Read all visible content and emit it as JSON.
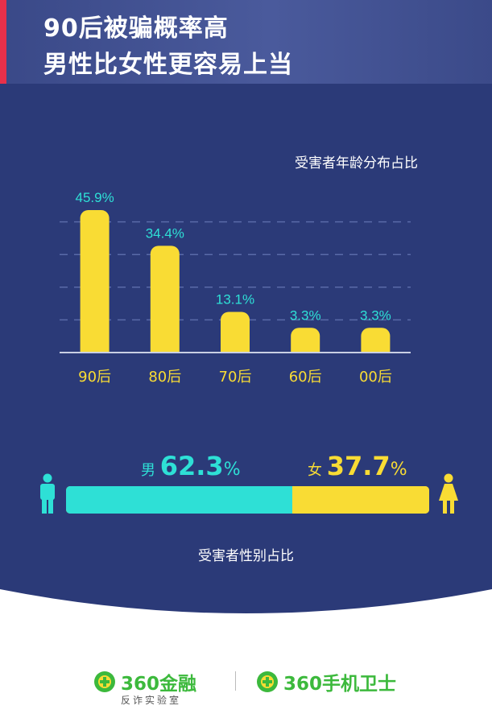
{
  "header": {
    "title_line1": "90后被骗概率高",
    "title_line2": "男性比女性更容易上当"
  },
  "chart_data": [
    {
      "type": "bar",
      "title": "受害者年龄分布占比",
      "categories": [
        "90后",
        "80后",
        "70后",
        "60后",
        "00后"
      ],
      "values": [
        45.9,
        34.4,
        13.1,
        3.3,
        3.3
      ],
      "value_labels": [
        "45.9%",
        "34.4%",
        "13.1%",
        "3.3%",
        "3.3%"
      ],
      "unit": "%",
      "ylim": [
        0,
        50
      ],
      "grid": true,
      "bar_color": "#f9dc34",
      "label_color": "#2ee0d6"
    },
    {
      "type": "bar",
      "orientation": "horizontal-stacked",
      "title": "受害者性别占比",
      "categories": [
        "男",
        "女"
      ],
      "values": [
        62.3,
        37.7
      ],
      "colors": [
        "#2ee0d6",
        "#f9dc34"
      ]
    }
  ],
  "gender": {
    "male_label": "男",
    "male_value": "62.3",
    "female_label": "女",
    "female_value": "37.7",
    "pct_sign": "%"
  },
  "icons": {
    "male": "male-person-icon",
    "female": "female-person-icon",
    "logo": "plus-circle-logo-icon"
  },
  "footer": {
    "brand_left": "360金融",
    "brand_left_sub": "反诈实验室",
    "brand_right": "360手机卫士"
  },
  "colors": {
    "background": "#2b3a78",
    "accent_red": "#e8304a",
    "yellow": "#f9dc34",
    "cyan": "#2ee0d6",
    "brand_green": "#3cb93c"
  }
}
